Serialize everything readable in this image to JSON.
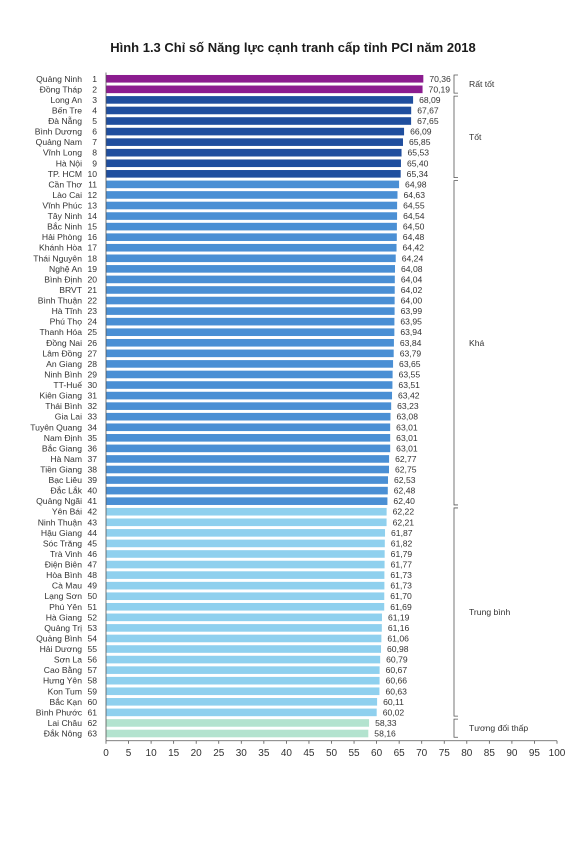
{
  "chart_data": {
    "type": "bar",
    "orientation": "horizontal",
    "title": "Hình 1.3 Chỉ số Năng lực cạnh tranh cấp tỉnh PCI năm 2018",
    "xlim": [
      0,
      100
    ],
    "xticks": [
      "0",
      "5",
      "10",
      "15",
      "20",
      "25",
      "30",
      "35",
      "40",
      "45",
      "50",
      "55",
      "60",
      "65",
      "70",
      "75",
      "80",
      "85",
      "90",
      "95",
      "100"
    ],
    "grid": false,
    "categories": [
      "Quảng Ninh",
      "Đồng Tháp",
      "Long An",
      "Bến Tre",
      "Đà Nẵng",
      "Bình Dương",
      "Quảng Nam",
      "Vĩnh Long",
      "Hà Nội",
      "TP. HCM",
      "Cần Thơ",
      "Lào Cai",
      "Vĩnh Phúc",
      "Tây Ninh",
      "Bắc Ninh",
      "Hải Phòng",
      "Khánh Hòa",
      "Thái Nguyên",
      "Nghệ An",
      "Bình Định",
      "BRVT",
      "Bình Thuận",
      "Hà Tĩnh",
      "Phú Thọ",
      "Thanh Hóa",
      "Đồng Nai",
      "Lâm Đồng",
      "An Giang",
      "Ninh Bình",
      "TT-Huế",
      "Kiên Giang",
      "Thái Bình",
      "Gia Lai",
      "Tuyên Quang",
      "Nam Định",
      "Bắc Giang",
      "Hà Nam",
      "Tiền Giang",
      "Bạc Liêu",
      "Đắc Lắk",
      "Quảng Ngãi",
      "Yên Bái",
      "Ninh Thuận",
      "Hậu Giang",
      "Sóc Trăng",
      "Trà Vinh",
      "Điện Biên",
      "Hòa Bình",
      "Cà Mau",
      "Lạng Sơn",
      "Phú Yên",
      "Hà Giang",
      "Quảng Trị",
      "Quảng Bình",
      "Hải Dương",
      "Sơn La",
      "Cao Bằng",
      "Hưng Yên",
      "Kon Tum",
      "Bắc Kạn",
      "Bình Phước",
      "Lai Châu",
      "Đắk Nông"
    ],
    "ranks": [
      "1",
      "2",
      "3",
      "4",
      "5",
      "6",
      "7",
      "8",
      "9",
      "10",
      "11",
      "12",
      "13",
      "14",
      "15",
      "16",
      "17",
      "18",
      "19",
      "20",
      "21",
      "22",
      "23",
      "24",
      "25",
      "26",
      "27",
      "28",
      "29",
      "30",
      "31",
      "32",
      "33",
      "34",
      "35",
      "36",
      "37",
      "38",
      "39",
      "40",
      "41",
      "42",
      "43",
      "44",
      "45",
      "46",
      "47",
      "48",
      "49",
      "50",
      "51",
      "52",
      "53",
      "54",
      "55",
      "56",
      "57",
      "58",
      "59",
      "60",
      "61",
      "62",
      "63"
    ],
    "values": [
      70.36,
      70.19,
      68.09,
      67.67,
      67.65,
      66.09,
      65.85,
      65.53,
      65.4,
      65.34,
      64.98,
      64.63,
      64.55,
      64.54,
      64.5,
      64.48,
      64.42,
      64.24,
      64.08,
      64.04,
      64.02,
      64.0,
      63.99,
      63.95,
      63.94,
      63.84,
      63.79,
      63.65,
      63.55,
      63.51,
      63.42,
      63.23,
      63.08,
      63.01,
      63.01,
      63.01,
      62.77,
      62.75,
      62.53,
      62.48,
      62.4,
      62.22,
      62.21,
      61.87,
      61.82,
      61.79,
      61.77,
      61.73,
      61.73,
      61.7,
      61.69,
      61.19,
      61.16,
      61.06,
      60.98,
      60.79,
      60.67,
      60.66,
      60.63,
      60.11,
      60.02,
      58.33,
      58.16
    ],
    "value_labels": [
      "70,36",
      "70,19",
      "68,09",
      "67,67",
      "67,65",
      "66,09",
      "65,85",
      "65,53",
      "65,40",
      "65,34",
      "64,98",
      "64,63",
      "64,55",
      "64,54",
      "64,50",
      "64,48",
      "64,42",
      "64,24",
      "64,08",
      "64,04",
      "64,02",
      "64,00",
      "63,99",
      "63,95",
      "63,94",
      "63,84",
      "63,79",
      "63,65",
      "63,55",
      "63,51",
      "63,42",
      "63,23",
      "63,08",
      "63,01",
      "63,01",
      "63,01",
      "62,77",
      "62,75",
      "62,53",
      "62,48",
      "62,40",
      "62,22",
      "62,21",
      "61,87",
      "61,82",
      "61,79",
      "61,77",
      "61,73",
      "61,73",
      "61,70",
      "61,69",
      "61,19",
      "61,16",
      "61,06",
      "60,98",
      "60,79",
      "60,67",
      "60,66",
      "60,63",
      "60,11",
      "60,02",
      "58,33",
      "58,16"
    ],
    "groups": [
      {
        "name": "Rất tốt",
        "start": 0,
        "end": 1,
        "color": "#8b1c8f"
      },
      {
        "name": "Tốt",
        "start": 2,
        "end": 9,
        "color": "#1f4e9e"
      },
      {
        "name": "Khá",
        "start": 10,
        "end": 40,
        "color": "#4a8fd4"
      },
      {
        "name": "Trung bình",
        "start": 41,
        "end": 60,
        "color": "#8fd0ee"
      },
      {
        "name": "Tương đối thấp",
        "start": 61,
        "end": 62,
        "color": "#b3e3cf"
      }
    ]
  }
}
